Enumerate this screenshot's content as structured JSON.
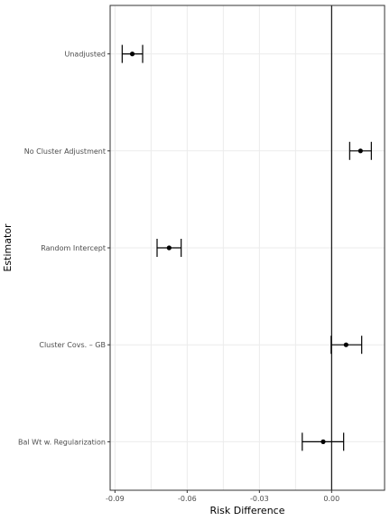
{
  "chart_data": {
    "type": "errorbar",
    "xlabel": "Risk Difference",
    "ylabel": "Estimator",
    "xlim": [
      -0.092,
      0.022
    ],
    "xticks": [
      -0.09,
      -0.06,
      -0.03,
      0.0
    ],
    "xtick_labels": [
      "-0.09",
      "-0.06",
      "-0.03",
      "0.00"
    ],
    "reference_line_x": 0,
    "grid": true,
    "categories": [
      "Unadjusted",
      "No Cluster Adjustment",
      "Random Intercept",
      "Cluster Covs. – GB",
      "Bal Wt w. Regularization"
    ],
    "estimates": [
      -0.0828,
      0.012,
      -0.0675,
      0.006,
      -0.0035
    ],
    "lower": [
      -0.087,
      0.0075,
      -0.0725,
      -0.0002,
      -0.0122
    ],
    "upper": [
      -0.0785,
      0.0165,
      -0.0625,
      0.0125,
      0.005
    ]
  }
}
